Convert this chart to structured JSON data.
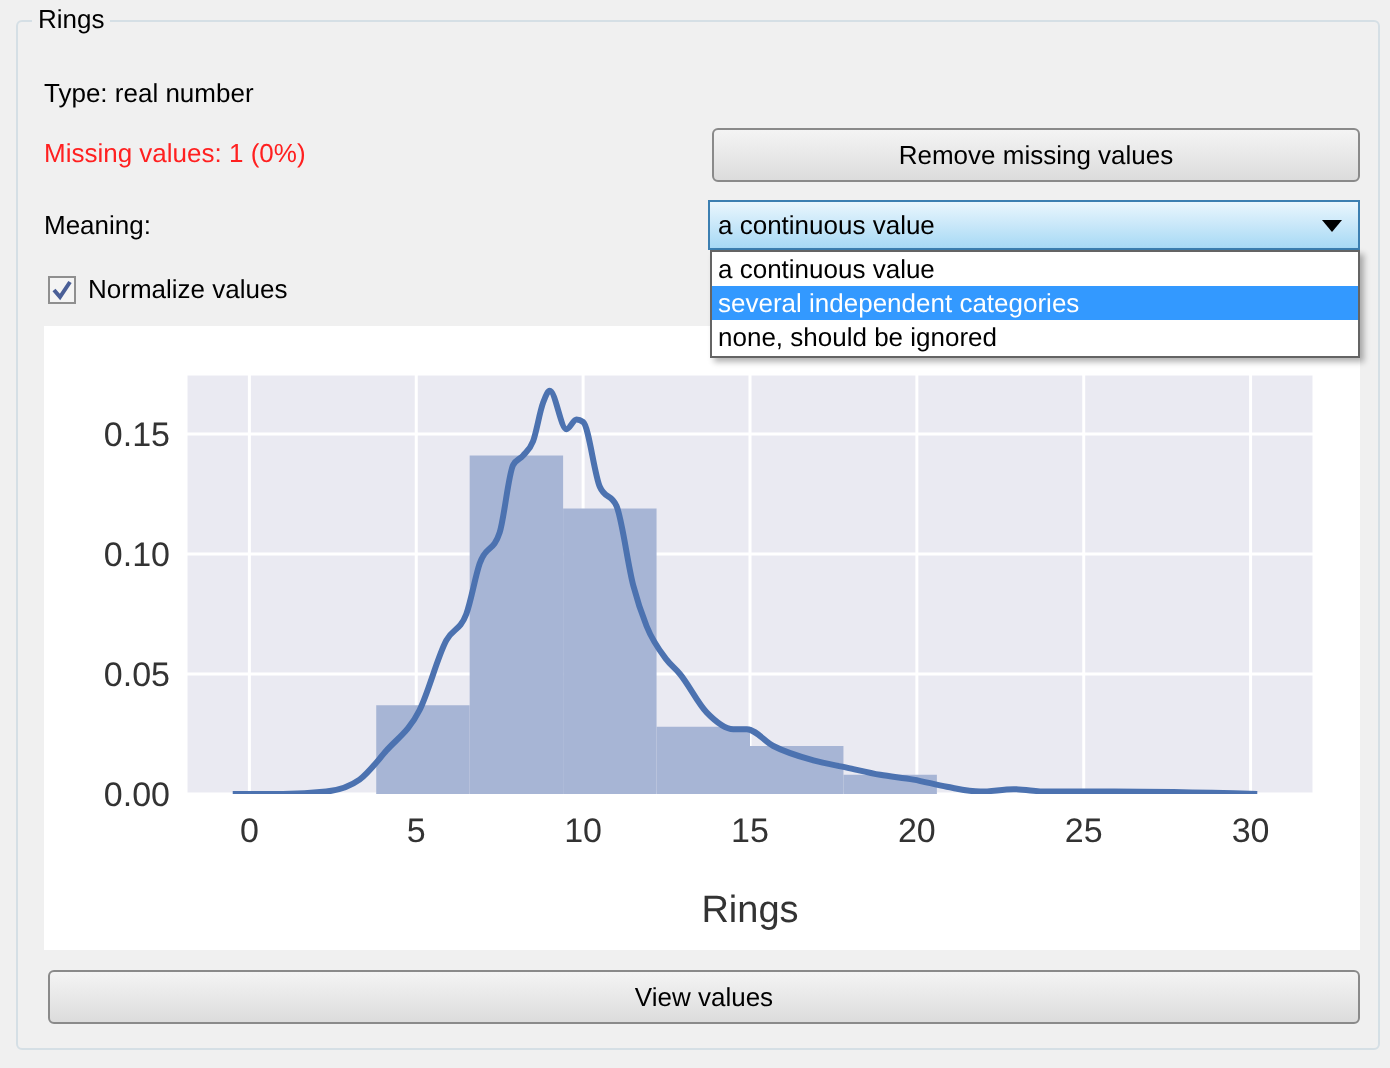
{
  "chart_data": {
    "type": "histogram",
    "title": "Rings",
    "xlabel": "Rings",
    "bins": [
      3.8,
      6.6,
      9.4,
      12.2,
      15,
      17.8,
      20.6
    ],
    "values": [
      0.037,
      0.141,
      0.119,
      0.028,
      0.02,
      0.008
    ],
    "color": "#a7b5d5",
    "series": [
      {
        "type": "line",
        "color": "#4c72b0",
        "x": [
          -0.5,
          1,
          2.3,
          3.3,
          4.1,
          5.1,
          5.9,
          6.5,
          6.9,
          7.5,
          7.9,
          8.2,
          8.5,
          8.8,
          9.0,
          9.5,
          9.8,
          10,
          10.5,
          11,
          11.5,
          11.9,
          12.5,
          12.9,
          13.7,
          14.5,
          14.9,
          15.7,
          16.9,
          17.9,
          18.9,
          19.9,
          20.9,
          21.9,
          22.9,
          23.9,
          25.9,
          30.2
        ],
        "values": [
          0,
          0,
          0.001,
          0.006,
          0.018,
          0.035,
          0.064,
          0.075,
          0.096,
          0.109,
          0.137,
          0.141,
          0.147,
          0.163,
          0.168,
          0.152,
          0.156,
          0.155,
          0.128,
          0.12,
          0.087,
          0.07,
          0.056,
          0.05,
          0.034,
          0.027,
          0.027,
          0.02,
          0.014,
          0.011,
          0.008,
          0.006,
          0.003,
          0.001,
          0.002,
          0.001,
          0.001,
          0
        ]
      }
    ],
    "xlim": [
      -1.9,
      31.9
    ],
    "xticks": [
      0,
      5,
      10,
      15,
      20,
      25,
      30
    ],
    "ylim": [
      0,
      0.175
    ],
    "yticks": [
      {
        "value": 0,
        "label": "0.00"
      },
      {
        "value": 0.05,
        "label": "0.05"
      },
      {
        "value": 0.1,
        "label": "0.10"
      },
      {
        "value": 0.15,
        "label": "0.15"
      }
    ],
    "grid": true,
    "annotations": [
      "Type: real number",
      "Missing values: 1 (0%)",
      "Remove missing values",
      "Meaning:",
      "a continuous value",
      "a continuous value",
      "several independent categories",
      "none, should be ignored",
      "Normalize values",
      "View values"
    ]
  }
}
